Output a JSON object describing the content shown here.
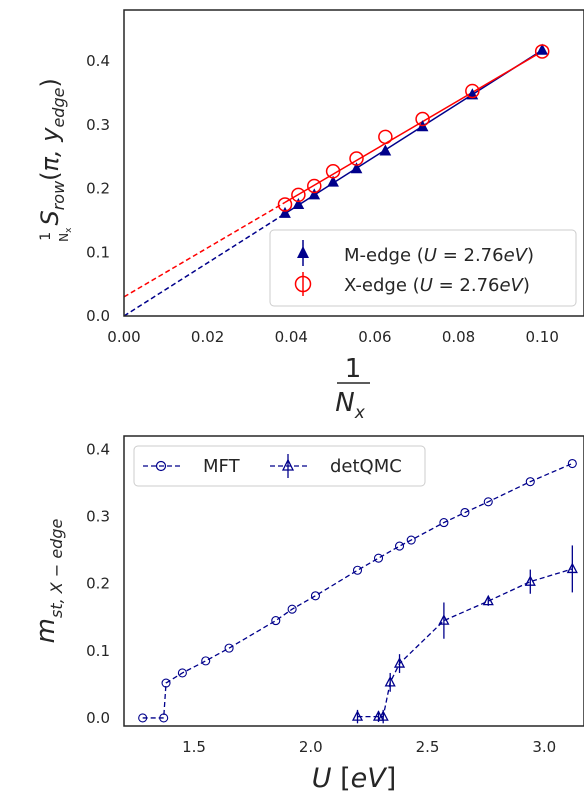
{
  "chart_data": [
    {
      "type": "scatter",
      "xlabel_top": "1",
      "xlabel_bottom": "N",
      "xlabel_sub": "x",
      "ylabel": "(1/N_x) S_row(π, y_edge)",
      "xlim": [
        0.0,
        0.11
      ],
      "ylim": [
        0.0,
        0.48
      ],
      "xticks": [
        "0.00",
        "0.02",
        "0.04",
        "0.06",
        "0.08",
        "0.10"
      ],
      "yticks": [
        "0.0",
        "0.1",
        "0.2",
        "0.3",
        "0.4"
      ],
      "legend_position": "lower-right",
      "series": [
        {
          "name": "M-edge (U = 2.76eV)",
          "marker": "triangle",
          "color": "#00008b",
          "x": [
            0.0385,
            0.0417,
            0.0455,
            0.05,
            0.0556,
            0.0625,
            0.0714,
            0.0833,
            0.1
          ],
          "y": [
            0.161,
            0.175,
            0.19,
            0.21,
            0.231,
            0.259,
            0.297,
            0.347,
            0.417
          ],
          "fit": {
            "x": [
              0.0,
              0.1
            ],
            "y": [
              0.0,
              0.417
            ]
          }
        },
        {
          "name": "X-edge (U = 2.76eV)",
          "marker": "circle-open",
          "color": "#ff0000",
          "x": [
            0.0385,
            0.0417,
            0.0455,
            0.05,
            0.0556,
            0.0625,
            0.0714,
            0.0833,
            0.1
          ],
          "y": [
            0.175,
            0.19,
            0.204,
            0.227,
            0.247,
            0.281,
            0.309,
            0.353,
            0.415
          ],
          "fit": {
            "x": [
              0.0,
              0.1
            ],
            "y": [
              0.03,
              0.415
            ]
          }
        }
      ]
    },
    {
      "type": "line",
      "xlabel": "U [eV]",
      "ylabel": "m_st, X-edge",
      "xlim": [
        1.2,
        3.17
      ],
      "ylim": [
        -0.012,
        0.42
      ],
      "xticks": [
        "1.5",
        "2.0",
        "2.5",
        "3.0"
      ],
      "yticks": [
        "0.0",
        "0.1",
        "0.2",
        "0.3",
        "0.4"
      ],
      "legend_position": "top-left",
      "series": [
        {
          "name": "MFT",
          "marker": "circle-open",
          "color": "#00008b",
          "x": [
            1.28,
            1.37,
            1.38,
            1.45,
            1.55,
            1.65,
            1.85,
            1.92,
            2.02,
            2.2,
            2.29,
            2.38,
            2.43,
            2.57,
            2.66,
            2.76,
            2.94,
            3.12
          ],
          "y": [
            0.0,
            0.0,
            0.052,
            0.067,
            0.085,
            0.104,
            0.145,
            0.162,
            0.182,
            0.22,
            0.238,
            0.256,
            0.265,
            0.291,
            0.306,
            0.322,
            0.352,
            0.379
          ]
        },
        {
          "name": "detQMC",
          "marker": "triangle-open",
          "color": "#00008b",
          "x": [
            2.2,
            2.29,
            2.31,
            2.34,
            2.38,
            2.57,
            2.76,
            2.94,
            3.12
          ],
          "y": [
            0.002,
            0.002,
            0.002,
            0.053,
            0.081,
            0.145,
            0.174,
            0.203,
            0.222
          ],
          "err": [
            0.01,
            0.008,
            0.01,
            0.014,
            0.014,
            0.027,
            0.007,
            0.018,
            0.035
          ]
        }
      ]
    }
  ]
}
